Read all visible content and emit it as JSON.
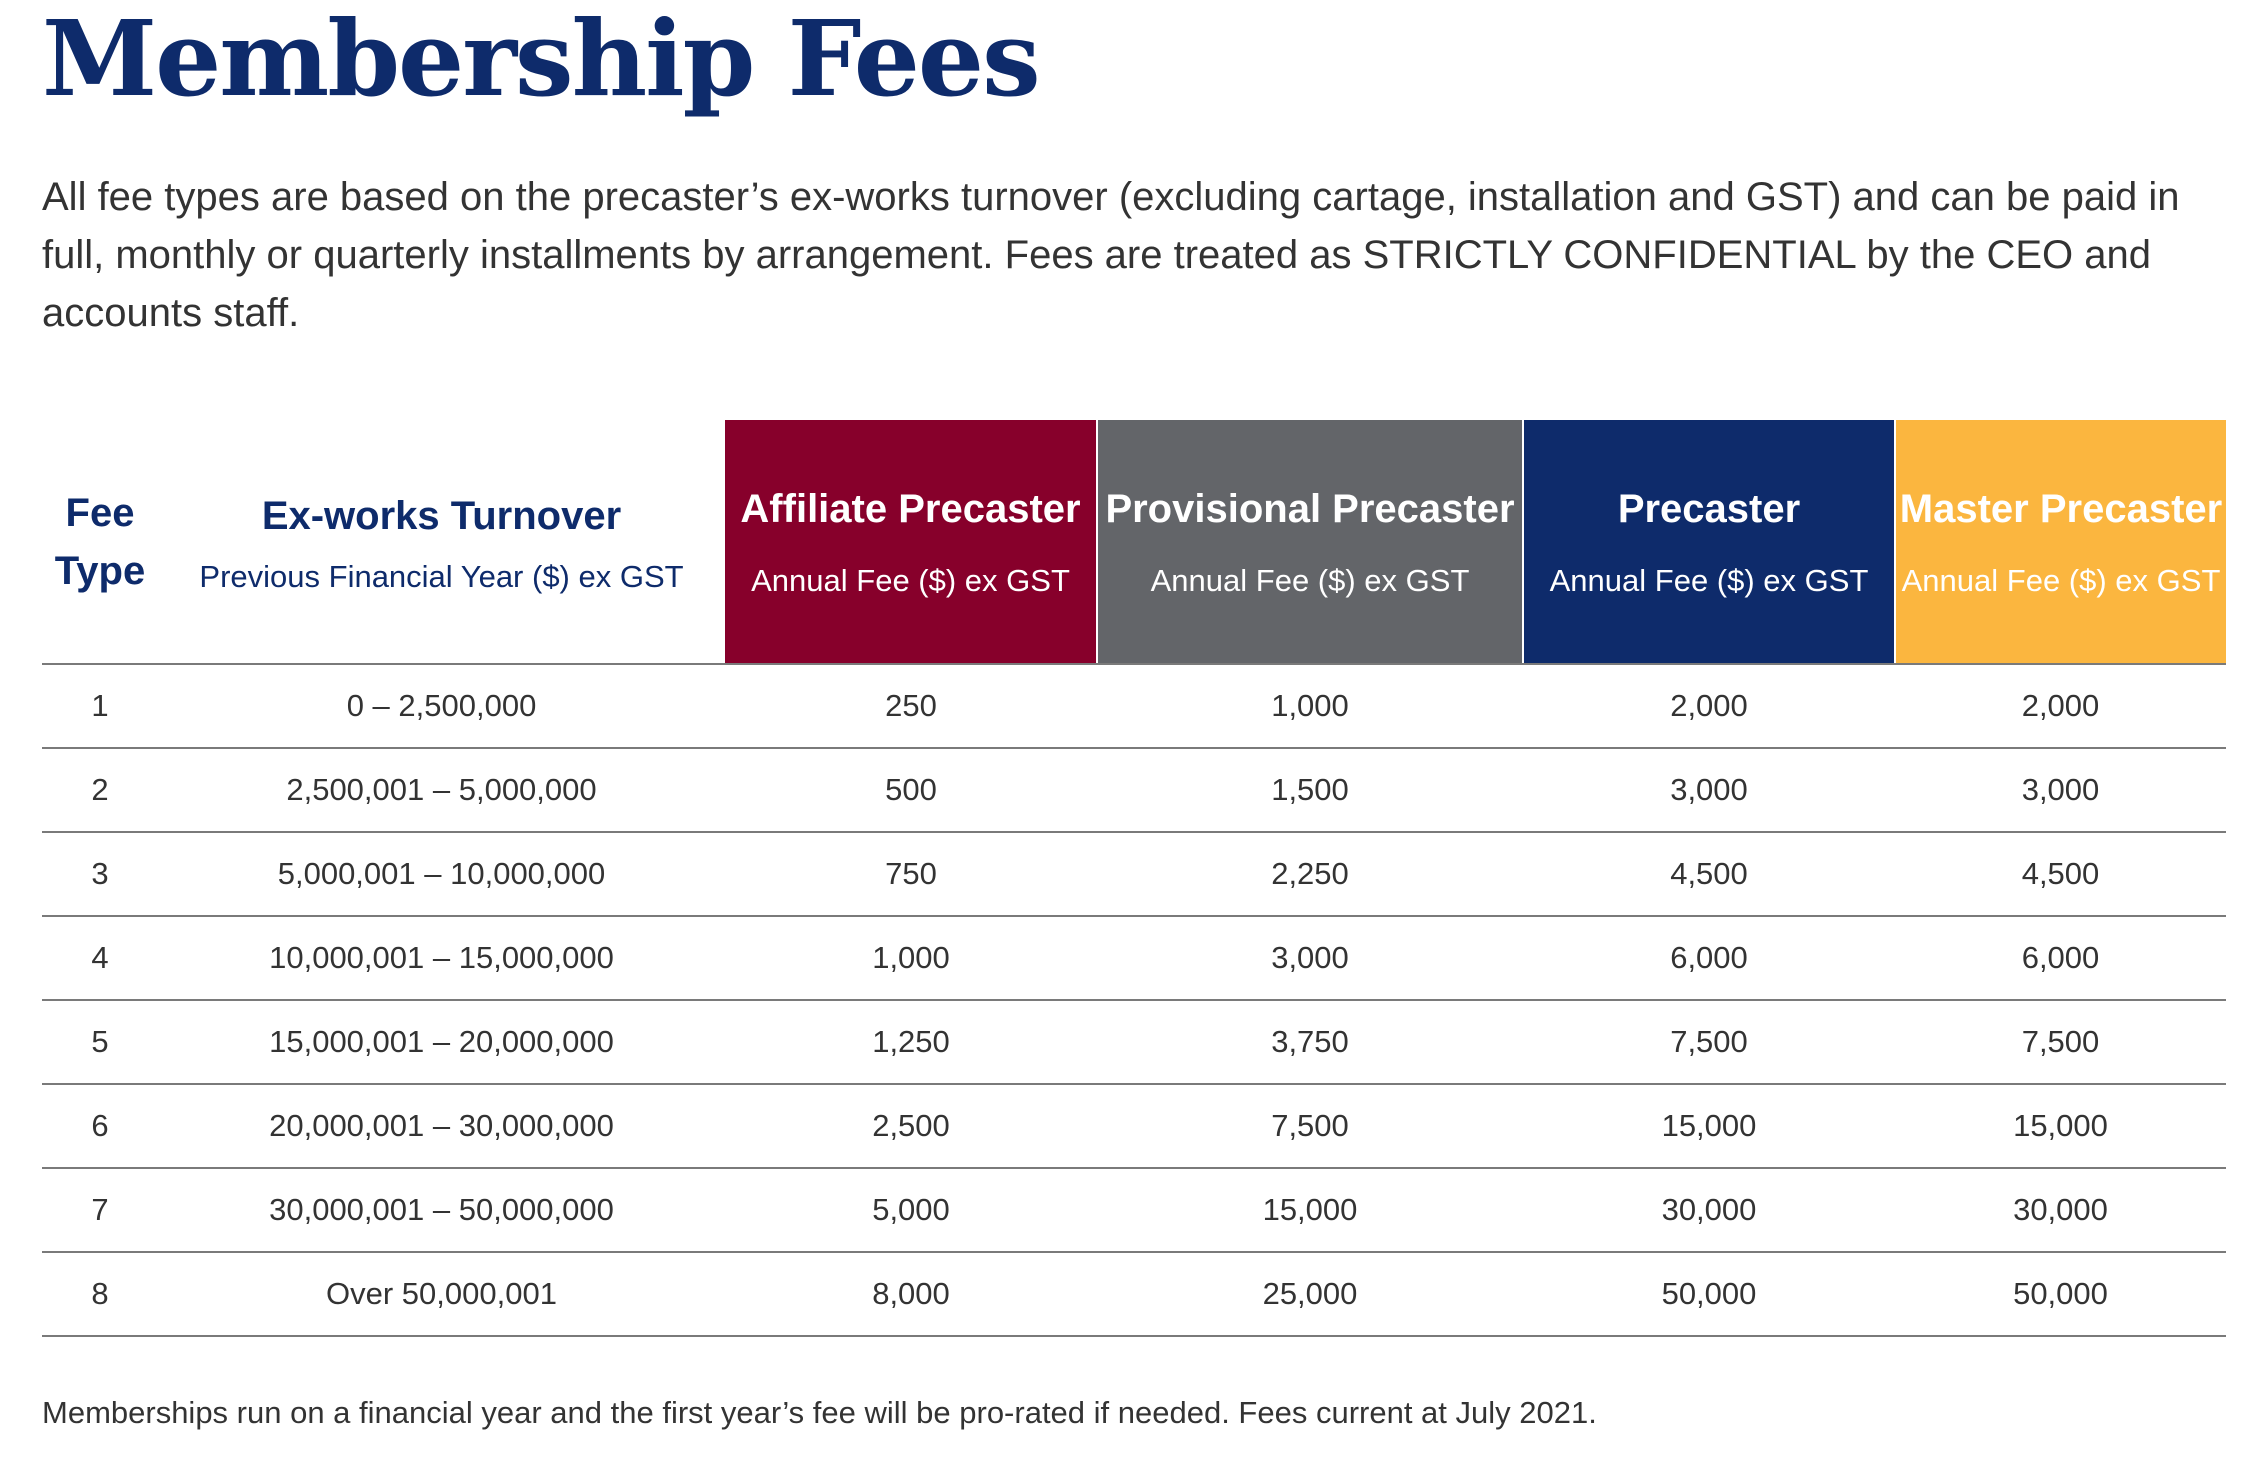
{
  "title": "Membership Fees",
  "intro": "All fee types are based on the precaster’s ex-works turnover (excluding cartage, installation and GST) and can be paid in full, monthly or quarterly installments by arrangement. Fees are treated as STRICTLY CONFIDENTIAL by the CEO and accounts staff.",
  "table": {
    "headers": {
      "fee_type_line1": "Fee",
      "fee_type_line2": "Type",
      "turnover_main": "Ex-works Turnover",
      "turnover_sub": "Previous Financial Year ($) ex GST",
      "affiliate_main": "Affiliate Precaster",
      "affiliate_sub": "Annual Fee ($) ex GST",
      "provisional_main": "Provisional Precaster",
      "provisional_sub": "Annual Fee ($) ex GST",
      "precaster_main": "Precaster",
      "precaster_sub": "Annual Fee ($) ex GST",
      "master_main": "Master Precaster",
      "master_sub": "Annual Fee ($) ex GST"
    },
    "colors": {
      "affiliate": "#87002b",
      "provisional": "#636569",
      "precaster": "#0e2b6b",
      "master": "#fbb63f"
    },
    "rows": [
      [
        "1",
        "0 – 2,500,000",
        "250",
        "1,000",
        "2,000",
        "2,000"
      ],
      [
        "2",
        "2,500,001 – 5,000,000",
        "500",
        "1,500",
        "3,000",
        "3,000"
      ],
      [
        "3",
        "5,000,001 – 10,000,000",
        "750",
        "2,250",
        "4,500",
        "4,500"
      ],
      [
        "4",
        "10,000,001 – 15,000,000",
        "1,000",
        "3,000",
        "6,000",
        "6,000"
      ],
      [
        "5",
        "15,000,001 – 20,000,000",
        "1,250",
        "3,750",
        "7,500",
        "7,500"
      ],
      [
        "6",
        "20,000,001 – 30,000,000",
        "2,500",
        "7,500",
        "15,000",
        "15,000"
      ],
      [
        "7",
        "30,000,001 – 50,000,000",
        "5,000",
        "15,000",
        "30,000",
        "30,000"
      ],
      [
        "8",
        "Over 50,000,001",
        "8,000",
        "25,000",
        "50,000",
        "50,000"
      ]
    ]
  },
  "footnote": "Memberships run on a financial year and the first year’s fee will be pro-rated if needed. Fees current at July 2021."
}
